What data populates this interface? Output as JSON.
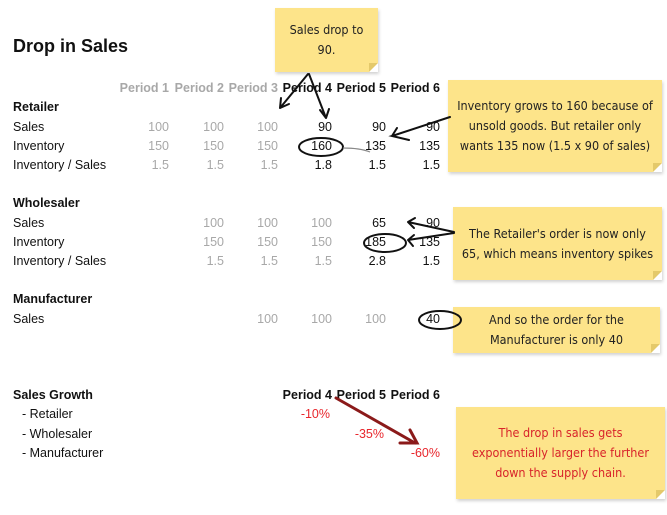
{
  "title": "Drop in Sales",
  "periods": [
    "Period 1",
    "Period 2",
    "Period 3",
    "Period 4",
    "Period 5",
    "Period 6"
  ],
  "sections": [
    {
      "name": "Retailer",
      "changed_from_period": 4,
      "rows": [
        {
          "label": "Sales",
          "values": [
            "100",
            "100",
            "100",
            "90",
            "90",
            "90"
          ]
        },
        {
          "label": "Inventory",
          "values": [
            "150",
            "150",
            "150",
            "160",
            "135",
            "135"
          ]
        },
        {
          "label": "Inventory / Sales",
          "values": [
            "1.5",
            "1.5",
            "1.5",
            "1.8",
            "1.5",
            "1.5"
          ]
        }
      ]
    },
    {
      "name": "Wholesaler",
      "changed_from_period": 5,
      "rows": [
        {
          "label": "Sales",
          "values": [
            null,
            "100",
            "100",
            "100",
            "65",
            "90"
          ]
        },
        {
          "label": "Inventory",
          "values": [
            null,
            "150",
            "150",
            "150",
            "185",
            "135"
          ]
        },
        {
          "label": "Inventory / Sales",
          "values": [
            null,
            "1.5",
            "1.5",
            "1.5",
            "2.8",
            "1.5"
          ]
        }
      ]
    },
    {
      "name": "Manufacturer",
      "changed_from_period": 6,
      "rows": [
        {
          "label": "Sales",
          "values": [
            null,
            null,
            "100",
            "100",
            "100",
            "40"
          ]
        }
      ]
    }
  ],
  "growth": {
    "title": "Sales Growth",
    "periods": [
      "Period 4",
      "Period 5",
      "Period 6"
    ],
    "rows": [
      {
        "label": "- Retailer",
        "values": [
          "-10%",
          null,
          null
        ]
      },
      {
        "label": "- Wholesaler",
        "values": [
          null,
          "-35%",
          null
        ]
      },
      {
        "label": "- Manufacturer",
        "values": [
          null,
          null,
          "-60%"
        ]
      }
    ],
    "color": "#e8262c"
  },
  "notes": [
    "Sales drop to 90.",
    "Inventory grows to 160 because of unsold goods. But retailer only wants 135 now (1.5 x 90 of sales)",
    "The Retailer's order is now only 65, which means inventory spikes",
    "And so the order for the Manufacturer is only 40",
    "The drop in sales gets exponentially larger the further down the supply chain."
  ],
  "colors": {
    "note": "#fde48a",
    "muted": "#a8a8a8",
    "arrow_red": "#8b1a1a"
  }
}
